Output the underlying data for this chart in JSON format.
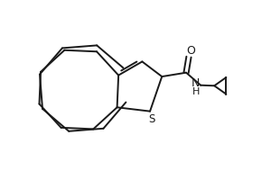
{
  "background_color": "#ffffff",
  "line_color": "#1a1a1a",
  "line_width": 1.4,
  "figsize": [
    3.0,
    2.0
  ],
  "dpi": 100,
  "S_label": "S",
  "O_label": "O",
  "N_label": "N",
  "H_label": "H"
}
